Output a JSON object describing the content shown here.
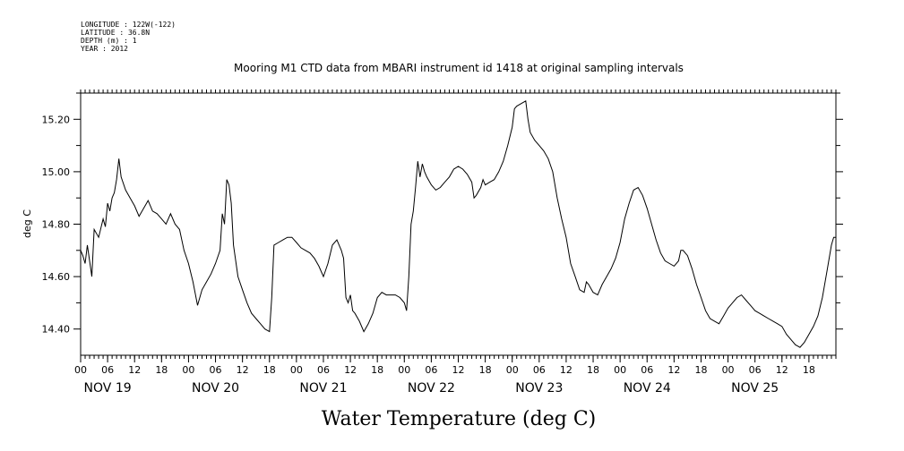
{
  "metadata": {
    "longitude": "LONGITUDE : 122W(-122)",
    "latitude": "LATITUDE : 36.8N",
    "depth": "DEPTH (m) : 1",
    "year": "YEAR : 2012"
  },
  "chart_data": {
    "type": "line",
    "title": "Mooring M1 CTD data from MBARI instrument id 1418 at original sampling intervals",
    "xlabel": "Water Temperature (deg C)",
    "ylabel": "deg C",
    "x_unit": "hours since NOV 19 00:00",
    "xlim": [
      0,
      168
    ],
    "ylim": [
      14.3,
      15.3
    ],
    "y_ticks": [
      "14.40",
      "14.60",
      "14.80",
      "15.00",
      "15.20"
    ],
    "hour_ticks": [
      "00",
      "06",
      "12",
      "18"
    ],
    "day_labels": [
      "NOV 19",
      "NOV 20",
      "NOV 21",
      "NOV 22",
      "NOV 23",
      "NOV 24",
      "NOV 25"
    ],
    "grid": false,
    "legend": "none",
    "series": [
      {
        "points": [
          [
            0,
            14.7
          ],
          [
            0.5,
            14.68
          ],
          [
            1,
            14.65
          ],
          [
            1.5,
            14.72
          ],
          [
            2,
            14.66
          ],
          [
            2.5,
            14.6
          ],
          [
            3,
            14.78
          ],
          [
            4,
            14.75
          ],
          [
            5,
            14.82
          ],
          [
            5.5,
            14.79
          ],
          [
            6,
            14.88
          ],
          [
            6.5,
            14.85
          ],
          [
            7,
            14.9
          ],
          [
            7.5,
            14.92
          ],
          [
            8,
            14.97
          ],
          [
            8.5,
            15.05
          ],
          [
            9,
            14.98
          ],
          [
            10,
            14.93
          ],
          [
            11,
            14.9
          ],
          [
            12,
            14.87
          ],
          [
            13,
            14.83
          ],
          [
            14,
            14.86
          ],
          [
            15,
            14.89
          ],
          [
            16,
            14.85
          ],
          [
            17,
            14.84
          ],
          [
            18,
            14.82
          ],
          [
            19,
            14.8
          ],
          [
            20,
            14.84
          ],
          [
            21,
            14.8
          ],
          [
            22,
            14.78
          ],
          [
            23,
            14.7
          ],
          [
            24,
            14.65
          ],
          [
            25,
            14.58
          ],
          [
            26,
            14.49
          ],
          [
            27,
            14.55
          ],
          [
            28,
            14.58
          ],
          [
            29,
            14.61
          ],
          [
            30,
            14.65
          ],
          [
            31,
            14.7
          ],
          [
            31.5,
            14.84
          ],
          [
            32,
            14.8
          ],
          [
            32.5,
            14.97
          ],
          [
            33,
            14.95
          ],
          [
            33.5,
            14.88
          ],
          [
            34,
            14.72
          ],
          [
            35,
            14.6
          ],
          [
            36,
            14.55
          ],
          [
            37,
            14.5
          ],
          [
            38,
            14.46
          ],
          [
            39,
            14.44
          ],
          [
            40,
            14.42
          ],
          [
            41,
            14.4
          ],
          [
            42,
            14.39
          ],
          [
            42.5,
            14.52
          ],
          [
            43,
            14.72
          ],
          [
            44,
            14.73
          ],
          [
            45,
            14.74
          ],
          [
            46,
            14.75
          ],
          [
            47,
            14.75
          ],
          [
            48,
            14.73
          ],
          [
            49,
            14.71
          ],
          [
            50,
            14.7
          ],
          [
            51,
            14.69
          ],
          [
            52,
            14.67
          ],
          [
            53,
            14.64
          ],
          [
            54,
            14.6
          ],
          [
            55,
            14.65
          ],
          [
            56,
            14.72
          ],
          [
            57,
            14.74
          ],
          [
            58,
            14.7
          ],
          [
            58.5,
            14.67
          ],
          [
            59,
            14.52
          ],
          [
            59.5,
            14.5
          ],
          [
            60,
            14.53
          ],
          [
            60.5,
            14.47
          ],
          [
            61,
            14.46
          ],
          [
            62,
            14.43
          ],
          [
            63,
            14.39
          ],
          [
            64,
            14.42
          ],
          [
            65,
            14.46
          ],
          [
            66,
            14.52
          ],
          [
            67,
            14.54
          ],
          [
            68,
            14.53
          ],
          [
            69,
            14.53
          ],
          [
            70,
            14.53
          ],
          [
            71,
            14.52
          ],
          [
            72,
            14.5
          ],
          [
            72.5,
            14.47
          ],
          [
            73,
            14.6
          ],
          [
            73.5,
            14.8
          ],
          [
            74,
            14.85
          ],
          [
            74.5,
            14.94
          ],
          [
            75,
            15.04
          ],
          [
            75.5,
            14.98
          ],
          [
            76,
            15.03
          ],
          [
            76.5,
            15.0
          ],
          [
            77,
            14.98
          ],
          [
            78,
            14.95
          ],
          [
            79,
            14.93
          ],
          [
            80,
            14.94
          ],
          [
            81,
            14.96
          ],
          [
            82,
            14.98
          ],
          [
            83,
            15.01
          ],
          [
            84,
            15.02
          ],
          [
            85,
            15.01
          ],
          [
            86,
            14.99
          ],
          [
            87,
            14.96
          ],
          [
            87.5,
            14.9
          ],
          [
            88,
            14.91
          ],
          [
            89,
            14.94
          ],
          [
            89.5,
            14.97
          ],
          [
            90,
            14.95
          ],
          [
            91,
            14.96
          ],
          [
            92,
            14.97
          ],
          [
            93,
            15.0
          ],
          [
            94,
            15.04
          ],
          [
            95,
            15.1
          ],
          [
            96,
            15.17
          ],
          [
            96.5,
            15.24
          ],
          [
            97,
            15.25
          ],
          [
            98,
            15.26
          ],
          [
            99,
            15.27
          ],
          [
            99.5,
            15.2
          ],
          [
            100,
            15.15
          ],
          [
            101,
            15.12
          ],
          [
            102,
            15.1
          ],
          [
            103,
            15.08
          ],
          [
            104,
            15.05
          ],
          [
            105,
            15.0
          ],
          [
            106,
            14.9
          ],
          [
            107,
            14.82
          ],
          [
            108,
            14.75
          ],
          [
            109,
            14.65
          ],
          [
            110,
            14.6
          ],
          [
            111,
            14.55
          ],
          [
            112,
            14.54
          ],
          [
            112.5,
            14.58
          ],
          [
            113,
            14.57
          ],
          [
            114,
            14.54
          ],
          [
            115,
            14.53
          ],
          [
            116,
            14.57
          ],
          [
            117,
            14.6
          ],
          [
            118,
            14.63
          ],
          [
            119,
            14.67
          ],
          [
            120,
            14.73
          ],
          [
            121,
            14.82
          ],
          [
            122,
            14.88
          ],
          [
            123,
            14.93
          ],
          [
            124,
            14.94
          ],
          [
            125,
            14.91
          ],
          [
            126,
            14.86
          ],
          [
            127,
            14.8
          ],
          [
            128,
            14.74
          ],
          [
            129,
            14.69
          ],
          [
            130,
            14.66
          ],
          [
            131,
            14.65
          ],
          [
            132,
            14.64
          ],
          [
            133,
            14.66
          ],
          [
            133.5,
            14.7
          ],
          [
            134,
            14.7
          ],
          [
            135,
            14.68
          ],
          [
            136,
            14.63
          ],
          [
            137,
            14.57
          ],
          [
            138,
            14.52
          ],
          [
            139,
            14.47
          ],
          [
            140,
            14.44
          ],
          [
            141,
            14.43
          ],
          [
            142,
            14.42
          ],
          [
            143,
            14.45
          ],
          [
            144,
            14.48
          ],
          [
            145,
            14.5
          ],
          [
            146,
            14.52
          ],
          [
            147,
            14.53
          ],
          [
            148,
            14.51
          ],
          [
            149,
            14.49
          ],
          [
            150,
            14.47
          ],
          [
            151,
            14.46
          ],
          [
            152,
            14.45
          ],
          [
            153,
            14.44
          ],
          [
            154,
            14.43
          ],
          [
            155,
            14.42
          ],
          [
            156,
            14.41
          ],
          [
            157,
            14.38
          ],
          [
            158,
            14.36
          ],
          [
            159,
            14.34
          ],
          [
            160,
            14.33
          ],
          [
            161,
            14.35
          ],
          [
            162,
            14.38
          ],
          [
            163,
            14.41
          ],
          [
            164,
            14.45
          ],
          [
            165,
            14.52
          ],
          [
            166,
            14.62
          ],
          [
            167,
            14.72
          ],
          [
            167.5,
            14.75
          ],
          [
            168,
            14.75
          ]
        ]
      }
    ]
  }
}
